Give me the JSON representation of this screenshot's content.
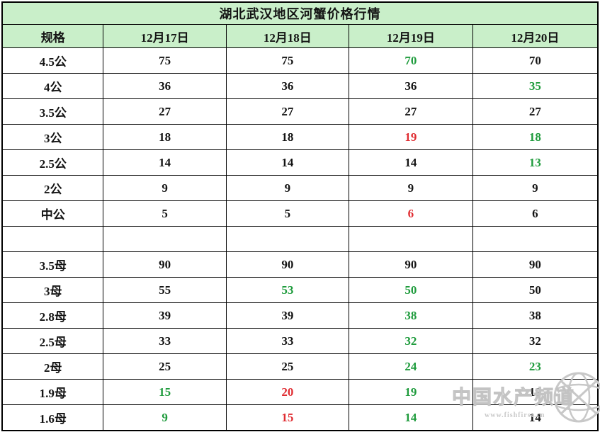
{
  "colors": {
    "black": "#141414",
    "green": "#1e9b3c",
    "red": "#e02d32",
    "header_bg": "#c9efc9",
    "border": "#000000",
    "watermark_gray": "#c3c3c3"
  },
  "watermark": {
    "brand": "中国水产频道",
    "url": "www.fishfirst.cn",
    "globe_icon": "globe-wireframe"
  },
  "chart_data": {
    "type": "table",
    "title": "湖北武汉地区河蟹价格行情",
    "columns": [
      "规格",
      "12月17日",
      "12月18日",
      "12月19日",
      "12月20日"
    ],
    "rows": [
      {
        "spec": "4.5公",
        "values": [
          "75",
          "75",
          "70",
          "70"
        ],
        "colors": [
          "black",
          "black",
          "green",
          "black"
        ]
      },
      {
        "spec": "4公",
        "values": [
          "36",
          "36",
          "36",
          "35"
        ],
        "colors": [
          "black",
          "black",
          "black",
          "green"
        ]
      },
      {
        "spec": "3.5公",
        "values": [
          "27",
          "27",
          "27",
          "27"
        ],
        "colors": [
          "black",
          "black",
          "black",
          "black"
        ]
      },
      {
        "spec": "3公",
        "values": [
          "18",
          "18",
          "19",
          "18"
        ],
        "colors": [
          "black",
          "black",
          "red",
          "green"
        ]
      },
      {
        "spec": "2.5公",
        "values": [
          "14",
          "14",
          "14",
          "13"
        ],
        "colors": [
          "black",
          "black",
          "black",
          "green"
        ]
      },
      {
        "spec": "2公",
        "values": [
          "9",
          "9",
          "9",
          "9"
        ],
        "colors": [
          "black",
          "black",
          "black",
          "black"
        ]
      },
      {
        "spec": "中公",
        "values": [
          "5",
          "5",
          "6",
          "6"
        ],
        "colors": [
          "black",
          "black",
          "red",
          "black"
        ]
      },
      {
        "spec": "",
        "values": [
          "",
          "",
          "",
          ""
        ],
        "colors": [
          "black",
          "black",
          "black",
          "black"
        ]
      },
      {
        "spec": "3.5母",
        "values": [
          "90",
          "90",
          "90",
          "90"
        ],
        "colors": [
          "black",
          "black",
          "black",
          "black"
        ]
      },
      {
        "spec": "3母",
        "values": [
          "55",
          "53",
          "50",
          "50"
        ],
        "colors": [
          "black",
          "green",
          "green",
          "black"
        ]
      },
      {
        "spec": "2.8母",
        "values": [
          "39",
          "39",
          "38",
          "38"
        ],
        "colors": [
          "black",
          "black",
          "green",
          "black"
        ]
      },
      {
        "spec": "2.5母",
        "values": [
          "33",
          "33",
          "32",
          "32"
        ],
        "colors": [
          "black",
          "black",
          "green",
          "black"
        ]
      },
      {
        "spec": "2母",
        "values": [
          "25",
          "25",
          "24",
          "23"
        ],
        "colors": [
          "black",
          "black",
          "green",
          "green"
        ]
      },
      {
        "spec": "1.9母",
        "values": [
          "15",
          "20",
          "19",
          "19"
        ],
        "colors": [
          "green",
          "red",
          "green",
          "black"
        ]
      },
      {
        "spec": "1.6母",
        "values": [
          "9",
          "15",
          "14",
          "14"
        ],
        "colors": [
          "green",
          "red",
          "green",
          "black"
        ]
      }
    ]
  }
}
